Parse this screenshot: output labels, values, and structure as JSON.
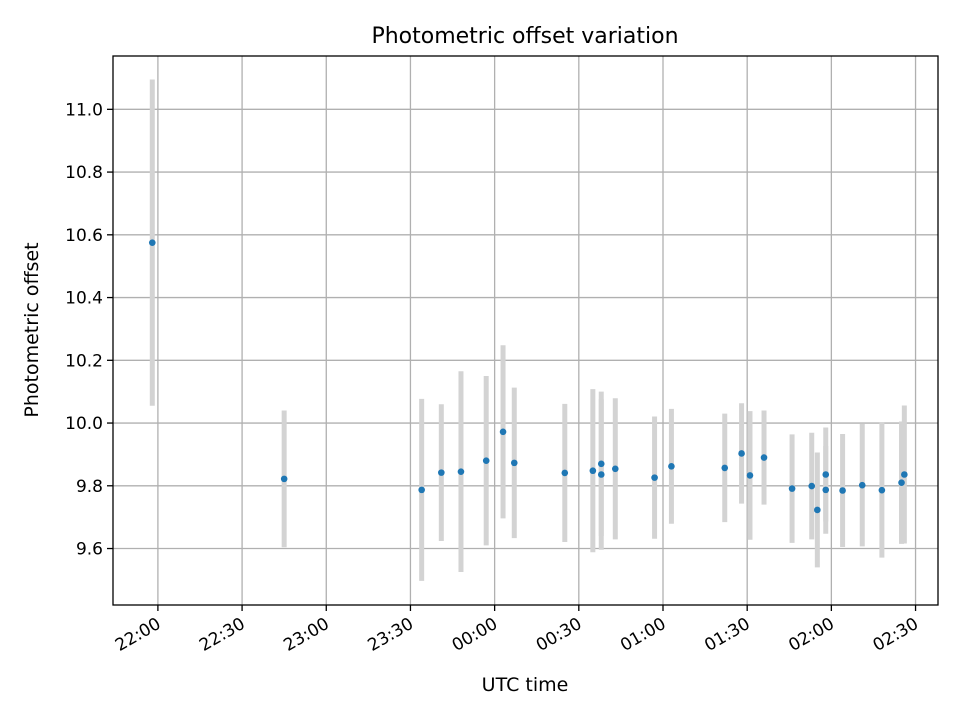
{
  "chart_data": {
    "type": "scatter",
    "title": "Photometric offset variation",
    "xlabel": "UTC time",
    "ylabel": "Photometric offset",
    "x_axis_type": "time",
    "xlim": [
      "21:44",
      "02:38"
    ],
    "ylim": [
      9.42,
      11.17
    ],
    "grid": true,
    "x_ticks": [
      "22:00",
      "22:30",
      "23:00",
      "23:30",
      "00:00",
      "00:30",
      "01:00",
      "01:30",
      "02:00",
      "02:30"
    ],
    "y_ticks": [
      "9.6",
      "9.8",
      "10.0",
      "10.2",
      "10.4",
      "10.6",
      "10.8",
      "11.0"
    ],
    "y_tick_values": [
      9.6,
      9.8,
      10.0,
      10.2,
      10.4,
      10.6,
      10.8,
      11.0
    ],
    "colors": {
      "marker": "#1f77b4",
      "errorbar": "#d3d3d3",
      "grid": "#b0b0b0"
    },
    "points": [
      {
        "time": "21:58",
        "y": 10.575,
        "err": 0.52
      },
      {
        "time": "22:45",
        "y": 9.822,
        "err": 0.218
      },
      {
        "time": "23:34",
        "y": 9.787,
        "err": 0.29
      },
      {
        "time": "23:41",
        "y": 9.842,
        "err": 0.218
      },
      {
        "time": "23:48",
        "y": 9.845,
        "err": 0.32
      },
      {
        "time": "23:57",
        "y": 9.88,
        "err": 0.27
      },
      {
        "time": "00:03",
        "y": 9.972,
        "err": 0.276
      },
      {
        "time": "00:07",
        "y": 9.873,
        "err": 0.24
      },
      {
        "time": "00:25",
        "y": 9.841,
        "err": 0.22
      },
      {
        "time": "00:35",
        "y": 9.848,
        "err": 0.26
      },
      {
        "time": "00:38",
        "y": 9.836,
        "err": 0.24
      },
      {
        "time": "00:38",
        "y": 9.87,
        "err": 0.23
      },
      {
        "time": "00:43",
        "y": 9.854,
        "err": 0.225
      },
      {
        "time": "00:57",
        "y": 9.826,
        "err": 0.195
      },
      {
        "time": "01:03",
        "y": 9.862,
        "err": 0.183
      },
      {
        "time": "01:22",
        "y": 9.857,
        "err": 0.173
      },
      {
        "time": "01:28",
        "y": 9.903,
        "err": 0.16
      },
      {
        "time": "01:31",
        "y": 9.833,
        "err": 0.205
      },
      {
        "time": "01:36",
        "y": 9.89,
        "err": 0.15
      },
      {
        "time": "01:46",
        "y": 9.791,
        "err": 0.173
      },
      {
        "time": "01:53",
        "y": 9.799,
        "err": 0.17
      },
      {
        "time": "01:55",
        "y": 9.723,
        "err": 0.183
      },
      {
        "time": "01:58",
        "y": 9.787,
        "err": 0.14
      },
      {
        "time": "01:58",
        "y": 9.836,
        "err": 0.15
      },
      {
        "time": "02:04",
        "y": 9.785,
        "err": 0.18
      },
      {
        "time": "02:11",
        "y": 9.802,
        "err": 0.195
      },
      {
        "time": "02:18",
        "y": 9.786,
        "err": 0.215
      },
      {
        "time": "02:25",
        "y": 9.81,
        "err": 0.195
      },
      {
        "time": "02:26",
        "y": 9.836,
        "err": 0.22
      }
    ]
  }
}
